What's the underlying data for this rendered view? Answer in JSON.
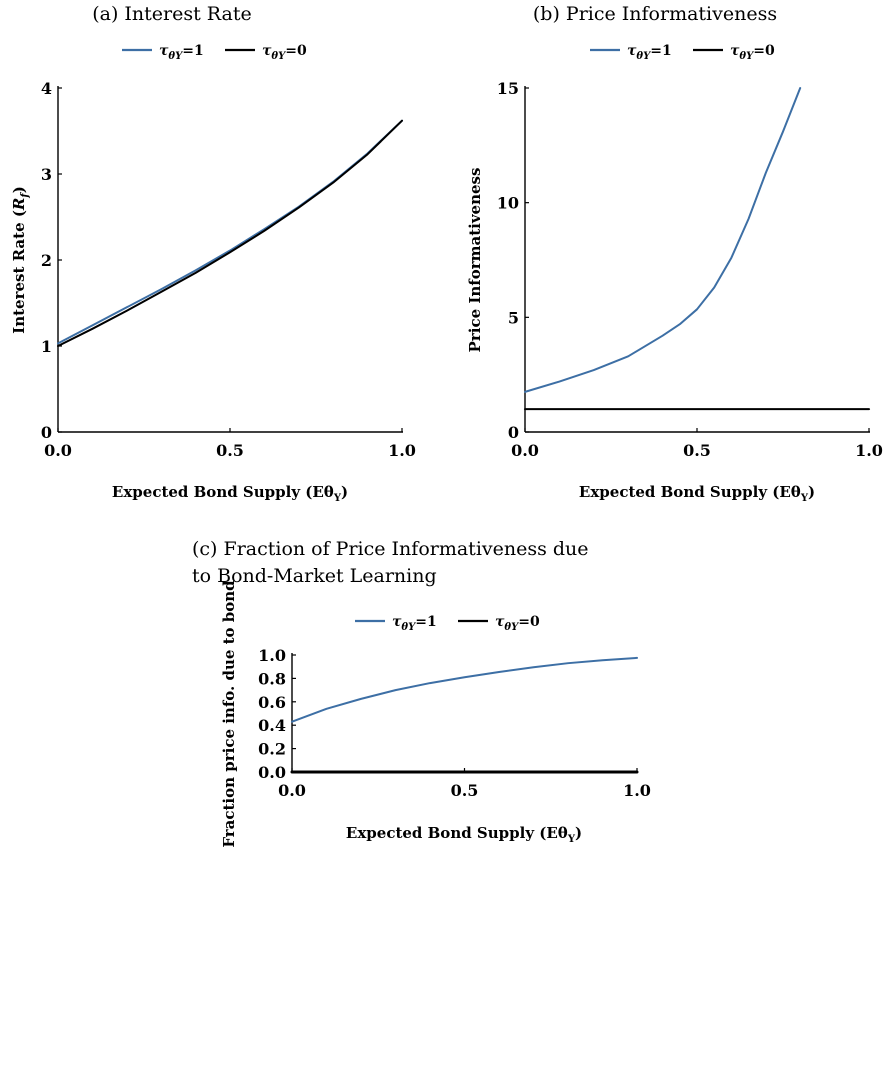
{
  "colors": {
    "tau_one": "#3d6fa5",
    "tau_zero": "#000000"
  },
  "legend": {
    "tau_one": "τθY=1",
    "tau_zero": "τθY=0"
  },
  "chart_data": [
    {
      "id": "a",
      "type": "line",
      "title": "(a) Interest Rate",
      "xlabel": "Expected Bond Supply (EθY)",
      "ylabel": "Interest Rate (Rf)",
      "xlim": [
        0,
        1
      ],
      "ylim": [
        0,
        4
      ],
      "xticks": [
        0,
        0.5,
        1
      ],
      "xtick_labels": [
        "0.0",
        "0.5",
        "1.0"
      ],
      "yticks": [
        0,
        1,
        2,
        3,
        4
      ],
      "ytick_labels": [
        "0",
        "1",
        "2",
        "3",
        "4"
      ],
      "legend_position": "top-center",
      "grid": false,
      "series": [
        {
          "name": "τθY=1",
          "color_key": "tau_one",
          "x": [
            0,
            0.1,
            0.2,
            0.3,
            0.4,
            0.5,
            0.6,
            0.7,
            0.8,
            0.9,
            1.0
          ],
          "y": [
            1.03,
            1.24,
            1.45,
            1.66,
            1.88,
            2.11,
            2.36,
            2.62,
            2.91,
            3.24,
            3.62
          ]
        },
        {
          "name": "τθY=0",
          "color_key": "tau_zero",
          "x": [
            0,
            0.1,
            0.2,
            0.3,
            0.4,
            0.5,
            0.6,
            0.7,
            0.8,
            0.9,
            1.0
          ],
          "y": [
            1.0,
            1.2,
            1.41,
            1.63,
            1.85,
            2.09,
            2.34,
            2.61,
            2.9,
            3.23,
            3.62
          ]
        }
      ]
    },
    {
      "id": "b",
      "type": "line",
      "title": "(b) Price Informativeness",
      "xlabel": "Expected Bond Supply (EθY)",
      "ylabel": "Price Informativeness",
      "xlim": [
        0,
        1
      ],
      "ylim": [
        0,
        15
      ],
      "xticks": [
        0,
        0.5,
        1
      ],
      "xtick_labels": [
        "0.0",
        "0.5",
        "1.0"
      ],
      "yticks": [
        0,
        5,
        10,
        15
      ],
      "ytick_labels": [
        "0",
        "5",
        "10",
        "15"
      ],
      "legend_position": "top-center",
      "grid": false,
      "series": [
        {
          "name": "τθY=1",
          "color_key": "tau_one",
          "x": [
            0,
            0.1,
            0.2,
            0.3,
            0.4,
            0.45,
            0.5,
            0.55,
            0.6,
            0.65,
            0.7,
            0.75,
            0.8
          ],
          "y": [
            1.75,
            2.2,
            2.7,
            3.3,
            4.2,
            4.7,
            5.35,
            6.3,
            7.6,
            9.3,
            11.3,
            13.1,
            15.0
          ]
        },
        {
          "name": "τθY=0",
          "color_key": "tau_zero",
          "x": [
            0,
            1.0
          ],
          "y": [
            1.0,
            1.0
          ]
        }
      ]
    },
    {
      "id": "c",
      "type": "line",
      "title": "(c) Fraction of Price Informativeness due to Bond-Market Learning",
      "title_lines": [
        "(c) Fraction of Price Informativeness due",
        "to Bond-Market Learning"
      ],
      "xlabel": "Expected Bond Supply (EθY)",
      "ylabel": "Fraction price info. due to bond",
      "xlim": [
        0,
        1
      ],
      "ylim": [
        0,
        1
      ],
      "xticks": [
        0,
        0.5,
        1
      ],
      "xtick_labels": [
        "0.0",
        "0.5",
        "1.0"
      ],
      "yticks": [
        0,
        0.2,
        0.4,
        0.6,
        0.8,
        1.0
      ],
      "ytick_labels": [
        "0.0",
        "0.2",
        "0.4",
        "0.6",
        "0.8",
        "1.0"
      ],
      "legend_position": "top-center",
      "grid": false,
      "series": [
        {
          "name": "τθY=1",
          "color_key": "tau_one",
          "x": [
            0,
            0.1,
            0.2,
            0.3,
            0.4,
            0.5,
            0.6,
            0.7,
            0.8,
            0.9,
            1.0
          ],
          "y": [
            0.43,
            0.54,
            0.625,
            0.7,
            0.76,
            0.81,
            0.855,
            0.895,
            0.93,
            0.955,
            0.975
          ]
        },
        {
          "name": "τθY=0",
          "color_key": "tau_zero",
          "x": [
            0,
            1.0
          ],
          "y": [
            0.0,
            0.0
          ]
        }
      ]
    }
  ]
}
